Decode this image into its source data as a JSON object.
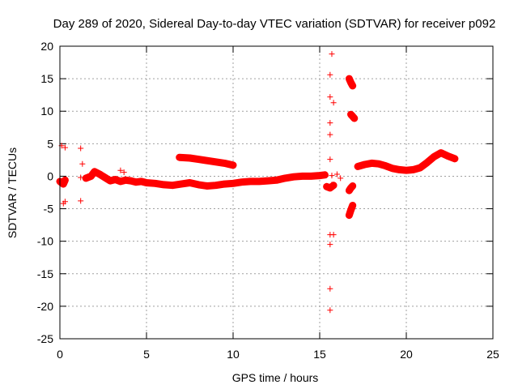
{
  "chart_data": {
    "type": "scatter",
    "title": "Day 289 of 2020, Sidereal Day-to-day VTEC variation (SDTVAR) for receiver p092",
    "xlabel": "GPS time / hours",
    "ylabel": "SDTVAR / TECUs",
    "xlim": [
      0,
      25
    ],
    "ylim": [
      -25,
      20
    ],
    "xticks": [
      0,
      5,
      10,
      15,
      20,
      25
    ],
    "yticks": [
      -25,
      -20,
      -15,
      -10,
      -5,
      0,
      5,
      10,
      15,
      20
    ],
    "grid": true,
    "marker": "+",
    "color": "#ff0000",
    "series": [
      {
        "name": "SDTVAR",
        "trace_segments": [
          {
            "x": [
              0.0,
              0.2,
              0.3
            ],
            "y": [
              -0.8,
              -1.2,
              -0.6
            ]
          },
          {
            "x": [
              1.5,
              1.8,
              2.0,
              2.3,
              2.6,
              2.9,
              3.2,
              3.5,
              3.8,
              4.1,
              4.4,
              4.7,
              5.0,
              5.5,
              6.0,
              6.5,
              7.0,
              7.5,
              8.0,
              8.5,
              9.0,
              9.5,
              10.0,
              10.5,
              11.0,
              11.5,
              12.0,
              12.5,
              13.0,
              13.5,
              14.0,
              14.5,
              15.0,
              15.3
            ],
            "y": [
              -0.3,
              0.0,
              0.7,
              0.3,
              -0.2,
              -0.7,
              -0.5,
              -0.8,
              -0.6,
              -0.7,
              -0.9,
              -0.8,
              -1.0,
              -1.1,
              -1.3,
              -1.4,
              -1.2,
              -1.0,
              -1.3,
              -1.5,
              -1.4,
              -1.2,
              -1.1,
              -0.9,
              -0.8,
              -0.8,
              -0.7,
              -0.6,
              -0.3,
              -0.1,
              0.0,
              0.0,
              0.1,
              0.2
            ]
          },
          {
            "x": [
              6.9,
              7.5,
              8.0,
              8.5,
              9.0,
              9.5,
              10.0
            ],
            "y": [
              2.9,
              2.8,
              2.6,
              2.4,
              2.2,
              2.0,
              1.7
            ]
          },
          {
            "x": [
              15.4,
              15.6,
              15.8
            ],
            "y": [
              -1.6,
              -1.8,
              -1.4
            ]
          },
          {
            "x": [
              16.7,
              16.8,
              16.9
            ],
            "y": [
              -2.2,
              -1.8,
              -1.5
            ]
          },
          {
            "x": [
              16.7,
              16.8,
              16.9
            ],
            "y": [
              -6.0,
              -5.2,
              -4.5
            ]
          },
          {
            "x": [
              16.7,
              16.8,
              16.9
            ],
            "y": [
              15.0,
              14.4,
              13.9
            ]
          },
          {
            "x": [
              16.8,
              16.9,
              17.0
            ],
            "y": [
              9.5,
              9.2,
              8.9
            ]
          },
          {
            "x": [
              17.2,
              17.6,
              18.0,
              18.4,
              18.8,
              19.2,
              19.6,
              20.0,
              20.4,
              20.8,
              21.2,
              21.6,
              22.0,
              22.4,
              22.8
            ],
            "y": [
              1.5,
              1.8,
              2.0,
              1.9,
              1.6,
              1.2,
              1.0,
              0.9,
              1.0,
              1.3,
              2.1,
              3.0,
              3.6,
              3.1,
              2.7
            ]
          }
        ],
        "points": [
          [
            0.1,
            4.7
          ],
          [
            0.3,
            4.4
          ],
          [
            0.2,
            -4.2
          ],
          [
            0.3,
            -3.9
          ],
          [
            1.2,
            4.3
          ],
          [
            1.2,
            -0.2
          ],
          [
            1.2,
            -3.8
          ],
          [
            1.3,
            1.9
          ],
          [
            3.5,
            0.9
          ],
          [
            3.7,
            0.6
          ],
          [
            15.7,
            18.8
          ],
          [
            15.6,
            15.6
          ],
          [
            15.6,
            12.2
          ],
          [
            15.8,
            11.3
          ],
          [
            15.6,
            8.2
          ],
          [
            15.6,
            6.4
          ],
          [
            15.6,
            2.6
          ],
          [
            15.7,
            0.1
          ],
          [
            15.7,
            -1.3
          ],
          [
            15.6,
            -9.0
          ],
          [
            15.8,
            -9.0
          ],
          [
            15.6,
            -10.5
          ],
          [
            15.6,
            -17.3
          ],
          [
            15.6,
            -20.6
          ],
          [
            16.2,
            -0.3
          ],
          [
            16.0,
            0.3
          ]
        ]
      }
    ]
  }
}
